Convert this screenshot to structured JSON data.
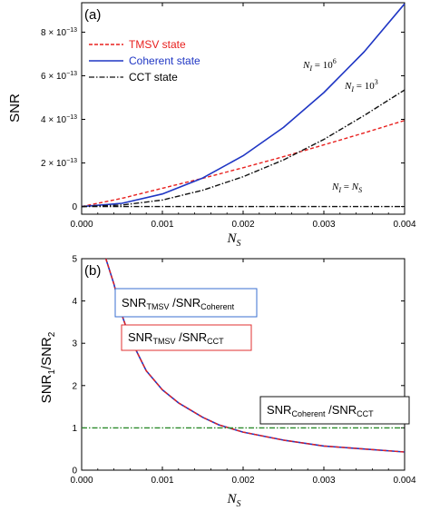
{
  "chart_data": [
    {
      "panel": "(a)",
      "type": "line",
      "xlabel": "N",
      "xlabel_sub": "S",
      "ylabel": "SNR",
      "xlim": [
        0,
        0.004
      ],
      "ylim": [
        -3.5e-14,
        9.35e-13
      ],
      "x_ticks": [
        "0.000",
        "0.001",
        "0.002",
        "0.003",
        "0.004"
      ],
      "y_ticks": [
        {
          "value": 0,
          "mant": "0",
          "exp": ""
        },
        {
          "value": 2e-13,
          "mant": "2 × 10",
          "exp": "−13"
        },
        {
          "value": 4e-13,
          "mant": "4 × 10",
          "exp": "−13"
        },
        {
          "value": 6e-13,
          "mant": "6 × 10",
          "exp": "−13"
        },
        {
          "value": 8e-13,
          "mant": "8 × 10",
          "exp": "−13"
        }
      ],
      "legend_position": "top-left",
      "series": [
        {
          "name": "TMSV state",
          "color": "#e8201e",
          "dash": "dashed",
          "x": [
            0,
            0.0005,
            0.001,
            0.0015,
            0.002,
            0.0025,
            0.003,
            0.0035,
            0.004
          ],
          "y": [
            0,
            3.8e-14,
            8.4e-14,
            1.3e-13,
            1.78e-13,
            2.29e-13,
            2.83e-13,
            3.38e-13,
            3.95e-13
          ]
        },
        {
          "name": "Coherent state",
          "color": "#1f36c4",
          "dash": "solid",
          "x": [
            0,
            0.0005,
            0.001,
            0.0015,
            0.002,
            0.0025,
            0.003,
            0.0035,
            0.004
          ],
          "y": [
            0,
            1.5e-14,
            5.8e-14,
            1.31e-13,
            2.33e-13,
            3.63e-13,
            5.23e-13,
            7.1e-13,
            9.3e-13
          ]
        },
        {
          "name": "CCT state",
          "color": "#111111",
          "dash": "dashdot",
          "x": [
            0,
            0.0005,
            0.001,
            0.0015,
            0.002,
            0.0025,
            0.003,
            0.0035,
            0.004
          ],
          "y": [
            0,
            7e-15,
            3e-14,
            7.5e-14,
            1.37e-13,
            2.14e-13,
            3.08e-13,
            4.18e-13,
            5.35e-13
          ]
        },
        {
          "name": "",
          "color": "#111111",
          "dash": "dashdot",
          "x": [
            0,
            0.004
          ],
          "y": [
            0,
            0
          ]
        }
      ],
      "annotations": [
        {
          "lhs": "N",
          "lhs_sub": "I",
          "eq": " = 10",
          "exp": "6",
          "rhs": "",
          "rhs_sub": ""
        },
        {
          "lhs": "N",
          "lhs_sub": "I",
          "eq": " = 10",
          "exp": "3",
          "rhs": "",
          "rhs_sub": ""
        },
        {
          "lhs": "N",
          "lhs_sub": "I",
          "eq": " = ",
          "exp": "",
          "rhs": "N",
          "rhs_sub": "S"
        }
      ]
    },
    {
      "panel": "(b)",
      "type": "line",
      "xlabel": "N",
      "xlabel_sub": "S",
      "ylabel": "SNR",
      "ylabel_sub1": "1",
      "ylabel_mid": "/SNR",
      "ylabel_sub2": "2",
      "xlim": [
        0,
        0.004
      ],
      "ylim": [
        0,
        5
      ],
      "x_ticks": [
        "0.000",
        "0.001",
        "0.002",
        "0.003",
        "0.004"
      ],
      "y_ticks": [
        {
          "value": 0,
          "label": "0"
        },
        {
          "value": 1,
          "label": "1"
        },
        {
          "value": 2,
          "label": "2"
        },
        {
          "value": 3,
          "label": "3"
        },
        {
          "value": 4,
          "label": "4"
        },
        {
          "value": 5,
          "label": "5"
        }
      ],
      "series": [
        {
          "name": "",
          "color": "#1f36c4",
          "dash": "solid",
          "x": [
            0.0003,
            0.0004,
            0.0005,
            0.0006,
            0.0008,
            0.001,
            0.0012,
            0.0015,
            0.0017,
            0.002,
            0.0025,
            0.003,
            0.0035,
            0.004
          ],
          "y": [
            5.0,
            4.4,
            3.66,
            3.12,
            2.35,
            1.9,
            1.59,
            1.25,
            1.07,
            0.9,
            0.71,
            0.57,
            0.5,
            0.43
          ]
        },
        {
          "name": "",
          "color": "#e8201e",
          "dash": "dashed",
          "x": [
            0.0003,
            0.0004,
            0.0005,
            0.0006,
            0.0008,
            0.001,
            0.0012,
            0.0015,
            0.0017,
            0.002,
            0.0025,
            0.003,
            0.0035,
            0.004
          ],
          "y": [
            5.0,
            4.4,
            3.66,
            3.12,
            2.35,
            1.9,
            1.59,
            1.25,
            1.07,
            0.9,
            0.71,
            0.57,
            0.5,
            0.43
          ]
        },
        {
          "name": "",
          "color": "#2a8a2a",
          "dash": "dashdot",
          "x": [
            0,
            0.004
          ],
          "y": [
            1,
            1
          ]
        }
      ],
      "boxes": [
        {
          "n1": "SNR",
          "s1": "TMSV",
          "n2": " /SNR",
          "s2": "Coherent",
          "border": "#3a6fd0"
        },
        {
          "n1": "SNR",
          "s1": "TMSV",
          "n2": " /SNR",
          "s2": "CCT",
          "border": "#e03030"
        },
        {
          "n1": "SNR",
          "s1": "Coherent",
          "n2": " /SNR",
          "s2": "CCT",
          "border": "#111111"
        }
      ]
    }
  ]
}
